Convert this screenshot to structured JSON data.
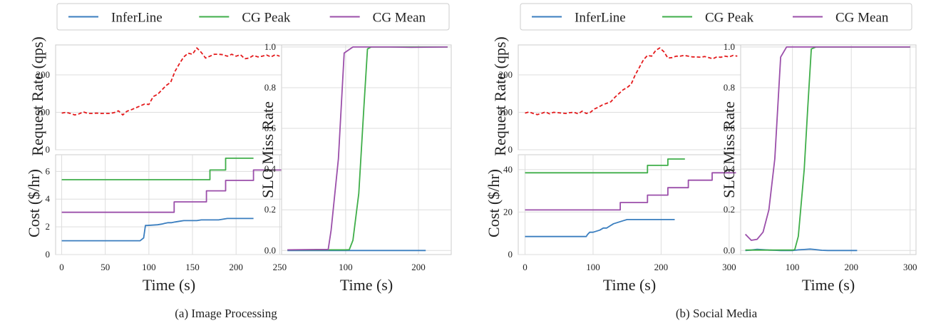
{
  "legend": [
    {
      "label": "InferLine",
      "color": "#3a7ebf"
    },
    {
      "label": "CG Peak",
      "color": "#3fae49"
    },
    {
      "label": "CG Mean",
      "color": "#9b4faa"
    }
  ],
  "request_color": "#e41a1c",
  "chart_data": [
    {
      "panel": "a",
      "caption": "(a)  Image Processing",
      "request": {
        "type": "line",
        "ylabel": "Request Rate (qps)",
        "xlim": [
          -7,
          253
        ],
        "ylim": [
          0,
          280
        ],
        "yticks": [
          0,
          100,
          200
        ],
        "grid": true,
        "series": [
          {
            "name": "",
            "style": "dashed",
            "color": "#e41a1c",
            "x": [
              0,
              5,
              10,
              15,
              20,
              25,
              30,
              35,
              40,
              45,
              50,
              55,
              60,
              65,
              70,
              75,
              80,
              85,
              90,
              95,
              100,
              105,
              110,
              115,
              120,
              125,
              130,
              135,
              140,
              145,
              150,
              155,
              160,
              165,
              170,
              175,
              180,
              185,
              190,
              195,
              200,
              205,
              210,
              215,
              220,
              225,
              230,
              235,
              240,
              245,
              250
            ],
            "y": [
              98,
              100,
              97,
              93,
              96,
              101,
              97,
              97,
              98,
              97,
              97,
              97,
              99,
              104,
              93,
              103,
              107,
              112,
              117,
              122,
              121,
              142,
              148,
              160,
              172,
              180,
              210,
              230,
              248,
              258,
              255,
              272,
              260,
              245,
              250,
              255,
              255,
              254,
              250,
              255,
              250,
              254,
              243,
              245,
              252,
              248,
              250,
              253,
              248,
              254,
              250
            ]
          }
        ]
      },
      "cost": {
        "type": "line",
        "xlabel": "Time (s)",
        "ylabel": "Cost ($/hr)",
        "xlim": [
          -7,
          253
        ],
        "ylim": [
          0,
          7.2
        ],
        "xticks": [
          0,
          50,
          100,
          150,
          200,
          250
        ],
        "yticks": [
          0,
          2,
          4,
          6
        ],
        "grid": true,
        "series": [
          {
            "name": "InferLine",
            "x": [
              0,
              90,
              92,
              94,
              96,
              98,
              110,
              115,
              118,
              122,
              126,
              130,
              135,
              140,
              145,
              150,
              155,
              160,
              180,
              185,
              190,
              220
            ],
            "y": [
              1.0,
              1.0,
              1.1,
              1.2,
              2.1,
              2.1,
              2.15,
              2.2,
              2.25,
              2.3,
              2.3,
              2.35,
              2.4,
              2.45,
              2.45,
              2.45,
              2.45,
              2.5,
              2.5,
              2.55,
              2.6,
              2.6
            ]
          },
          {
            "name": "CG Peak",
            "x": [
              0,
              170,
              170,
              188,
              188,
              220
            ],
            "y": [
              5.4,
              5.4,
              6.1,
              6.1,
              6.95,
              6.95
            ]
          },
          {
            "name": "CG Mean",
            "x": [
              0,
              129,
              129,
              166,
              166,
              188,
              188,
              220,
              220,
              253
            ],
            "y": [
              3.05,
              3.05,
              3.8,
              3.8,
              4.6,
              4.6,
              5.35,
              5.35,
              6.1,
              6.1
            ]
          }
        ]
      },
      "slo": {
        "type": "line",
        "xlabel": "Time (s)",
        "ylabel": "SLO Miss Rate",
        "xlim": [
          12,
          245
        ],
        "ylim": [
          -0.02,
          1.01
        ],
        "xticks": [
          100,
          200
        ],
        "yticks": [
          0.0,
          0.2,
          0.4,
          0.6,
          0.8,
          1.0
        ],
        "grid": true,
        "series": [
          {
            "name": "InferLine",
            "x": [
              20,
              60,
              100,
              140,
              180,
              210
            ],
            "y": [
              0,
              0,
              0,
              0,
              0,
              0
            ]
          },
          {
            "name": "CG Peak",
            "x": [
              20,
              100,
              105,
              110,
              118,
              125,
              130,
              135,
              160,
              190,
              200,
              240
            ],
            "y": [
              0.003,
              0.003,
              0.004,
              0.05,
              0.28,
              0.7,
              0.99,
              1.0,
              1.0,
              1.0,
              1.0,
              1.0
            ]
          },
          {
            "name": "CG Mean",
            "x": [
              20,
              40,
              60,
              76,
              80,
              90,
              98,
              110,
              130,
              160,
              190,
              240
            ],
            "y": [
              0.003,
              0.004,
              0.005,
              0.005,
              0.1,
              0.45,
              0.97,
              1.0,
              1.0,
              1.0,
              0.998,
              1.0
            ]
          }
        ]
      }
    },
    {
      "panel": "b",
      "caption": "(b)  Social Media",
      "request": {
        "type": "line",
        "ylabel": "Request Rate (qps)",
        "xlim": [
          -10,
          318
        ],
        "ylim": [
          0,
          280
        ],
        "yticks": [
          0,
          100,
          200
        ],
        "grid": true,
        "series": [
          {
            "name": "",
            "style": "dashed",
            "color": "#e41a1c",
            "x": [
              0,
              6,
              12,
              18,
              24,
              30,
              36,
              42,
              48,
              54,
              60,
              66,
              72,
              78,
              84,
              90,
              96,
              102,
              108,
              114,
              120,
              126,
              132,
              138,
              144,
              150,
              156,
              162,
              168,
              174,
              180,
              186,
              192,
              198,
              204,
              210,
              216,
              222,
              228,
              234,
              240,
              246,
              252,
              258,
              264,
              270,
              276,
              282,
              288,
              294,
              300,
              306,
              312
            ],
            "y": [
              98,
              101,
              97,
              94,
              97,
              101,
              96,
              100,
              99,
              98,
              97,
              99,
              100,
              96,
              103,
              97,
              100,
              109,
              114,
              120,
              124,
              128,
              140,
              150,
              160,
              166,
              175,
              200,
              220,
              240,
              252,
              250,
              265,
              272,
              262,
              245,
              246,
              250,
              250,
              252,
              250,
              248,
              248,
              247,
              249,
              246,
              243,
              248,
              247,
              250,
              248,
              252,
              250
            ]
          }
        ]
      },
      "cost": {
        "type": "line",
        "xlabel": "Time (s)",
        "ylabel": "Cost ($/hr)",
        "xlim": [
          -10,
          318
        ],
        "ylim": [
          0,
          47
        ],
        "xticks": [
          0,
          100,
          200,
          300
        ],
        "yticks": [
          0,
          20,
          40
        ],
        "grid": true,
        "series": [
          {
            "name": "InferLine",
            "x": [
              0,
              90,
              92,
              95,
              100,
              105,
              110,
              115,
              120,
              125,
              130,
              135,
              140,
              145,
              150,
              155,
              160,
              220
            ],
            "y": [
              8.5,
              8.5,
              9.5,
              10.5,
              10.5,
              11,
              11.5,
              12.5,
              12.5,
              13.5,
              14.5,
              15,
              15.5,
              16,
              16.5,
              16.5,
              16.5,
              16.5
            ]
          },
          {
            "name": "CG Peak",
            "x": [
              0,
              180,
              180,
              210,
              210,
              235
            ],
            "y": [
              38.5,
              38.5,
              42,
              42,
              45,
              45
            ]
          },
          {
            "name": "CG Mean",
            "x": [
              0,
              140,
              140,
              180,
              180,
              210,
              210,
              240,
              240,
              275,
              275,
              310
            ],
            "y": [
              21,
              21,
              24.5,
              24.5,
              28,
              28,
              31.5,
              31.5,
              35,
              35,
              38.5,
              38.5
            ]
          }
        ]
      },
      "slo": {
        "type": "line",
        "xlabel": "Time (s)",
        "ylabel": "SLO Miss Rate",
        "xlim": [
          12,
          310
        ],
        "ylim": [
          -0.02,
          1.01
        ],
        "xticks": [
          100,
          200,
          300
        ],
        "yticks": [
          0.0,
          0.2,
          0.4,
          0.6,
          0.8,
          1.0
        ],
        "grid": true,
        "series": [
          {
            "name": "InferLine",
            "x": [
              20,
              30,
              40,
              50,
              60,
              70,
              80,
              90,
              100,
              110,
              120,
              130,
              140,
              150,
              160,
              170,
              180,
              190,
              200,
              210
            ],
            "y": [
              0,
              0.002,
              0.006,
              0.004,
              0.002,
              0.001,
              0,
              0,
              0,
              0.003,
              0.005,
              0.007,
              0.004,
              0.001,
              0,
              0,
              0,
              0,
              0,
              0
            ]
          },
          {
            "name": "CG Peak",
            "x": [
              20,
              60,
              100,
              104,
              110,
              120,
              126,
              132,
              140,
              170,
              200,
              240,
              300
            ],
            "y": [
              0.002,
              0.002,
              0.002,
              0.004,
              0.07,
              0.4,
              0.7,
              0.99,
              1.0,
              1.0,
              1.0,
              1.0,
              1.0
            ]
          },
          {
            "name": "CG Mean",
            "x": [
              20,
              30,
              40,
              50,
              60,
              70,
              80,
              90,
              100,
              110,
              150,
              200,
              300
            ],
            "y": [
              0.08,
              0.05,
              0.055,
              0.09,
              0.2,
              0.45,
              0.95,
              1.0,
              1.0,
              1.0,
              1.0,
              1.0,
              1.0
            ]
          }
        ]
      }
    }
  ]
}
